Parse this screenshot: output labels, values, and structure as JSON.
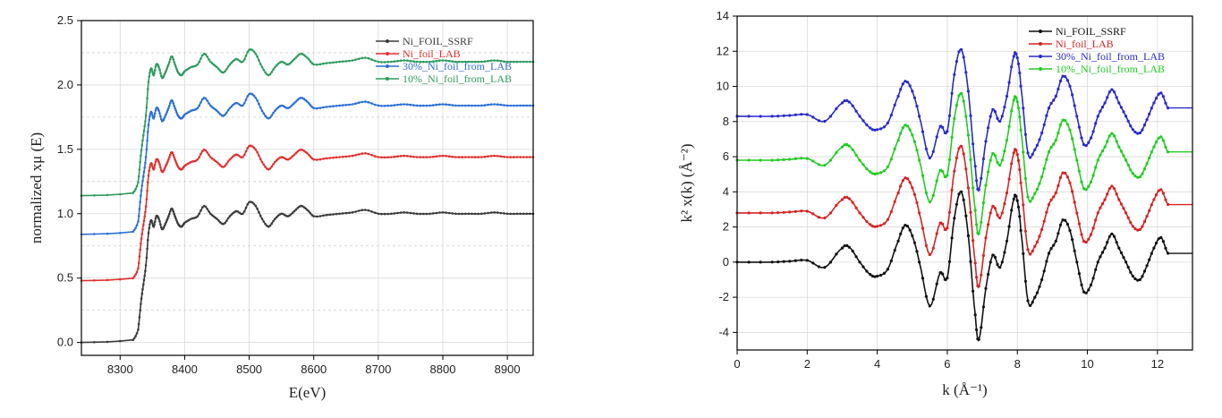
{
  "chart_data": [
    {
      "type": "line",
      "xlabel": "E(eV)",
      "ylabel": "normalized xμ (E)",
      "xlim": [
        8240,
        8940
      ],
      "ylim": [
        -0.1,
        2.5
      ],
      "xticks": [
        8300,
        8400,
        8500,
        8600,
        8700,
        8800,
        8900
      ],
      "yticks": [
        0.0,
        0.5,
        1.0,
        1.5,
        2.0,
        2.5
      ],
      "ytick_labels": [
        "0.0",
        "0.5",
        "1.0",
        "1.5",
        "2.0",
        "2.5"
      ],
      "legend_position": "top-right",
      "series": [
        {
          "name": "Ni_FOIL_SSRF",
          "color": "#3a3a3a",
          "offset": 0.0
        },
        {
          "name": "Ni_foil_LAB",
          "color": "#e03030",
          "offset": 0.48
        },
        {
          "name": "30%_Ni_foil_from_LAB",
          "color": "#2c6fd6",
          "offset": 0.84
        },
        {
          "name": "10%_Ni_foil_from_LAB",
          "color": "#2f9a5e",
          "offset": 1.14
        }
      ],
      "base_curve": {
        "x": [
          8240,
          8320,
          8328,
          8332,
          8336,
          8340,
          8344,
          8348,
          8352,
          8356,
          8360,
          8365,
          8370,
          8375,
          8380,
          8385,
          8390,
          8395,
          8400,
          8410,
          8420,
          8430,
          8440,
          8450,
          8460,
          8470,
          8480,
          8490,
          8500,
          8510,
          8520,
          8530,
          8540,
          8550,
          8560,
          8570,
          8580,
          8590,
          8600,
          8620,
          8640,
          8660,
          8680,
          8700,
          8720,
          8740,
          8760,
          8780,
          8800,
          8820,
          8840,
          8860,
          8880,
          8900,
          8920,
          8940
        ],
        "y": [
          0.0,
          0.02,
          0.1,
          0.3,
          0.45,
          0.6,
          0.85,
          0.95,
          0.9,
          0.98,
          0.96,
          0.88,
          0.92,
          0.98,
          1.04,
          0.98,
          0.92,
          0.9,
          0.93,
          0.96,
          0.98,
          1.06,
          1.0,
          0.96,
          0.92,
          0.98,
          1.02,
          1.0,
          1.09,
          1.06,
          0.96,
          0.9,
          0.96,
          1.0,
          0.98,
          1.02,
          1.06,
          1.03,
          0.98,
          0.99,
          1.0,
          1.01,
          1.03,
          1.0,
          1.0,
          1.01,
          1.0,
          1.0,
          1.01,
          1.0,
          1.0,
          1.0,
          1.01,
          1.0,
          1.0,
          1.0
        ]
      }
    },
    {
      "type": "line",
      "xlabel": "k (Å⁻¹)",
      "ylabel": "k² x(k) (Å⁻²)",
      "xlim": [
        0,
        13
      ],
      "ylim": [
        -5,
        14
      ],
      "xticks": [
        0,
        2,
        4,
        6,
        8,
        10,
        12
      ],
      "yticks": [
        -4,
        -2,
        0,
        2,
        4,
        6,
        8,
        10,
        12,
        14
      ],
      "ytick_labels": [
        "-4",
        "-2",
        "0",
        "2",
        "4",
        "6",
        "8",
        "10",
        "12",
        "14"
      ],
      "legend_position": "top-right",
      "series": [
        {
          "name": "Ni_FOIL_SSRF",
          "color": "#111111",
          "offset": 0.0
        },
        {
          "name": "Ni_foil_LAB",
          "color": "#d42424",
          "offset": 2.8
        },
        {
          "name": "30%_Ni_foil_from_LAB",
          "color": "#2a2acb",
          "offset": 8.3
        },
        {
          "name": "10%_Ni_foil_from_LAB",
          "color": "#22cc22",
          "offset": 5.8
        }
      ],
      "base_curve": {
        "x": [
          0.0,
          1.0,
          1.5,
          2.0,
          2.5,
          3.0,
          3.2,
          3.5,
          3.8,
          4.0,
          4.3,
          4.6,
          4.8,
          5.0,
          5.2,
          5.5,
          5.8,
          6.0,
          6.2,
          6.4,
          6.6,
          6.8,
          6.9,
          7.1,
          7.3,
          7.5,
          7.7,
          7.9,
          8.0,
          8.1,
          8.3,
          8.5,
          8.7,
          8.9,
          9.1,
          9.3,
          9.5,
          9.7,
          9.9,
          10.1,
          10.3,
          10.5,
          10.7,
          10.9,
          11.1,
          11.3,
          11.5,
          11.7,
          11.9,
          12.1,
          12.3
        ],
        "y": [
          0.0,
          0.0,
          0.05,
          0.1,
          -0.3,
          0.8,
          0.85,
          0.0,
          -0.7,
          -0.8,
          -0.4,
          1.2,
          2.1,
          1.5,
          0.0,
          -2.5,
          -0.6,
          -0.9,
          2.5,
          4.0,
          1.5,
          -3.0,
          -4.4,
          -1.5,
          0.4,
          -0.3,
          1.2,
          3.6,
          3.5,
          1.8,
          -2.2,
          -2.0,
          -1.0,
          0.5,
          1.2,
          2.4,
          1.8,
          0.0,
          -1.7,
          -1.3,
          0.0,
          0.8,
          1.6,
          0.8,
          0.0,
          -0.8,
          -1.0,
          -0.2,
          0.8,
          1.4,
          0.5
        ]
      }
    }
  ]
}
